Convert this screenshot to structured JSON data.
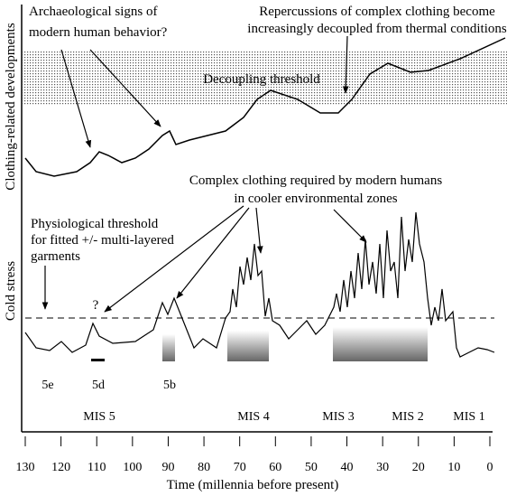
{
  "y_labels": {
    "top": "Clothing-related developments",
    "bottom": "Cold stress"
  },
  "annotations": {
    "archaeological": [
      "Archaeological signs of",
      "modern human behavior?"
    ],
    "repercussions": [
      "Repercussions of complex clothing become",
      "increasingly decoupled from thermal conditions"
    ],
    "decoupling": "Decoupling threshold",
    "complex_clothing": [
      "Complex clothing required by modern humans",
      "in cooler environmental zones"
    ],
    "physiological": [
      "Physiological threshold",
      "for fitted +/- multi-layered",
      "garments"
    ],
    "question": "?"
  },
  "substages": [
    "5e",
    "5d",
    "5b"
  ],
  "mis": [
    "MIS 5",
    "MIS 4",
    "MIS 3",
    "MIS 2",
    "MIS 1"
  ],
  "x_axis": {
    "label": "Time (millennia before present)",
    "xlim": [
      130,
      0
    ],
    "xticks": [
      130,
      120,
      110,
      100,
      90,
      80,
      70,
      60,
      50,
      40,
      30,
      20,
      10,
      0
    ]
  }
}
